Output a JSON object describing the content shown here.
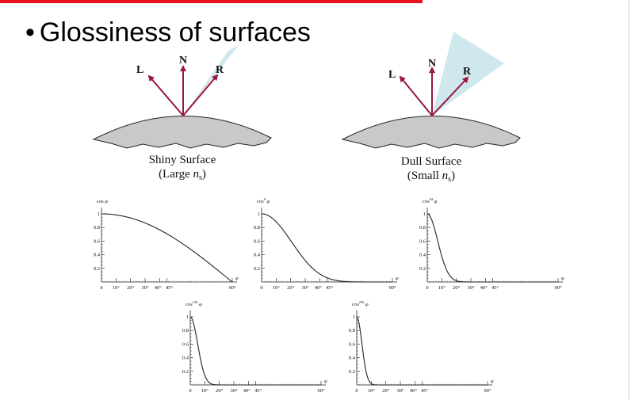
{
  "slide": {
    "bullet": "•",
    "title": "Glossiness of surfaces"
  },
  "diagram": {
    "vectors": {
      "L": "L",
      "N": "N",
      "R": "R"
    },
    "shiny": {
      "caption": "Shiny Surface",
      "sub_prefix": "(Large ",
      "sub_var": "n",
      "sub_sub": "s",
      "sub_suffix": ")"
    },
    "dull": {
      "caption": "Dull Surface",
      "sub_prefix": "(Small ",
      "sub_var": "n",
      "sub_sub": "s",
      "sub_suffix": ")"
    },
    "colors": {
      "vector": "#9a1540",
      "cone": "#cfe8ee",
      "surface": "#c9c9c9"
    }
  },
  "chart_data": [
    {
      "type": "line",
      "ylabel_base": "cos",
      "ylabel_exp": "",
      "xlabel": "φ",
      "exponent": 1,
      "ytick_labels": [
        "1",
        "0.8",
        "0.6",
        "0.4",
        "0.2"
      ],
      "xtick_labels": [
        "0",
        "10°",
        "20°",
        "30°",
        "40°",
        "45°",
        "90°"
      ],
      "xlim": [
        0,
        90
      ],
      "ylim": [
        0,
        1
      ]
    },
    {
      "type": "line",
      "ylabel_base": "cos",
      "ylabel_exp": "8",
      "xlabel": "φ",
      "exponent": 8,
      "ytick_labels": [
        "1",
        "0.8",
        "0.6",
        "0.4",
        "0.2"
      ],
      "xtick_labels": [
        "0",
        "10°",
        "20°",
        "30°",
        "40°",
        "45°",
        "90°"
      ],
      "xlim": [
        0,
        90
      ],
      "ylim": [
        0,
        1
      ]
    },
    {
      "type": "line",
      "ylabel_base": "cos",
      "ylabel_exp": "64",
      "xlabel": "φ",
      "exponent": 64,
      "ytick_labels": [
        "1",
        "0.8",
        "0.6",
        "0.4",
        "0.2"
      ],
      "xtick_labels": [
        "0",
        "10°",
        "20°",
        "30°",
        "40°",
        "45°",
        "90°"
      ],
      "xlim": [
        0,
        90
      ],
      "ylim": [
        0,
        1
      ]
    },
    {
      "type": "line",
      "ylabel_base": "cos",
      "ylabel_exp": "128",
      "xlabel": "φ",
      "exponent": 128,
      "ytick_labels": [
        "1",
        "0.8",
        "0.6",
        "0.4",
        "0.2"
      ],
      "xtick_labels": [
        "0",
        "10°",
        "20°",
        "30°",
        "40°",
        "45°",
        "90°"
      ],
      "xlim": [
        0,
        90
      ],
      "ylim": [
        0,
        1
      ]
    },
    {
      "type": "line",
      "ylabel_base": "cos",
      "ylabel_exp": "256",
      "xlabel": "φ",
      "exponent": 256,
      "ytick_labels": [
        "1",
        "0.8",
        "0.6",
        "0.4",
        "0.2"
      ],
      "xtick_labels": [
        "0",
        "10°",
        "20°",
        "30°",
        "40°",
        "45°",
        "90°"
      ],
      "xlim": [
        0,
        90
      ],
      "ylim": [
        0,
        1
      ]
    }
  ]
}
